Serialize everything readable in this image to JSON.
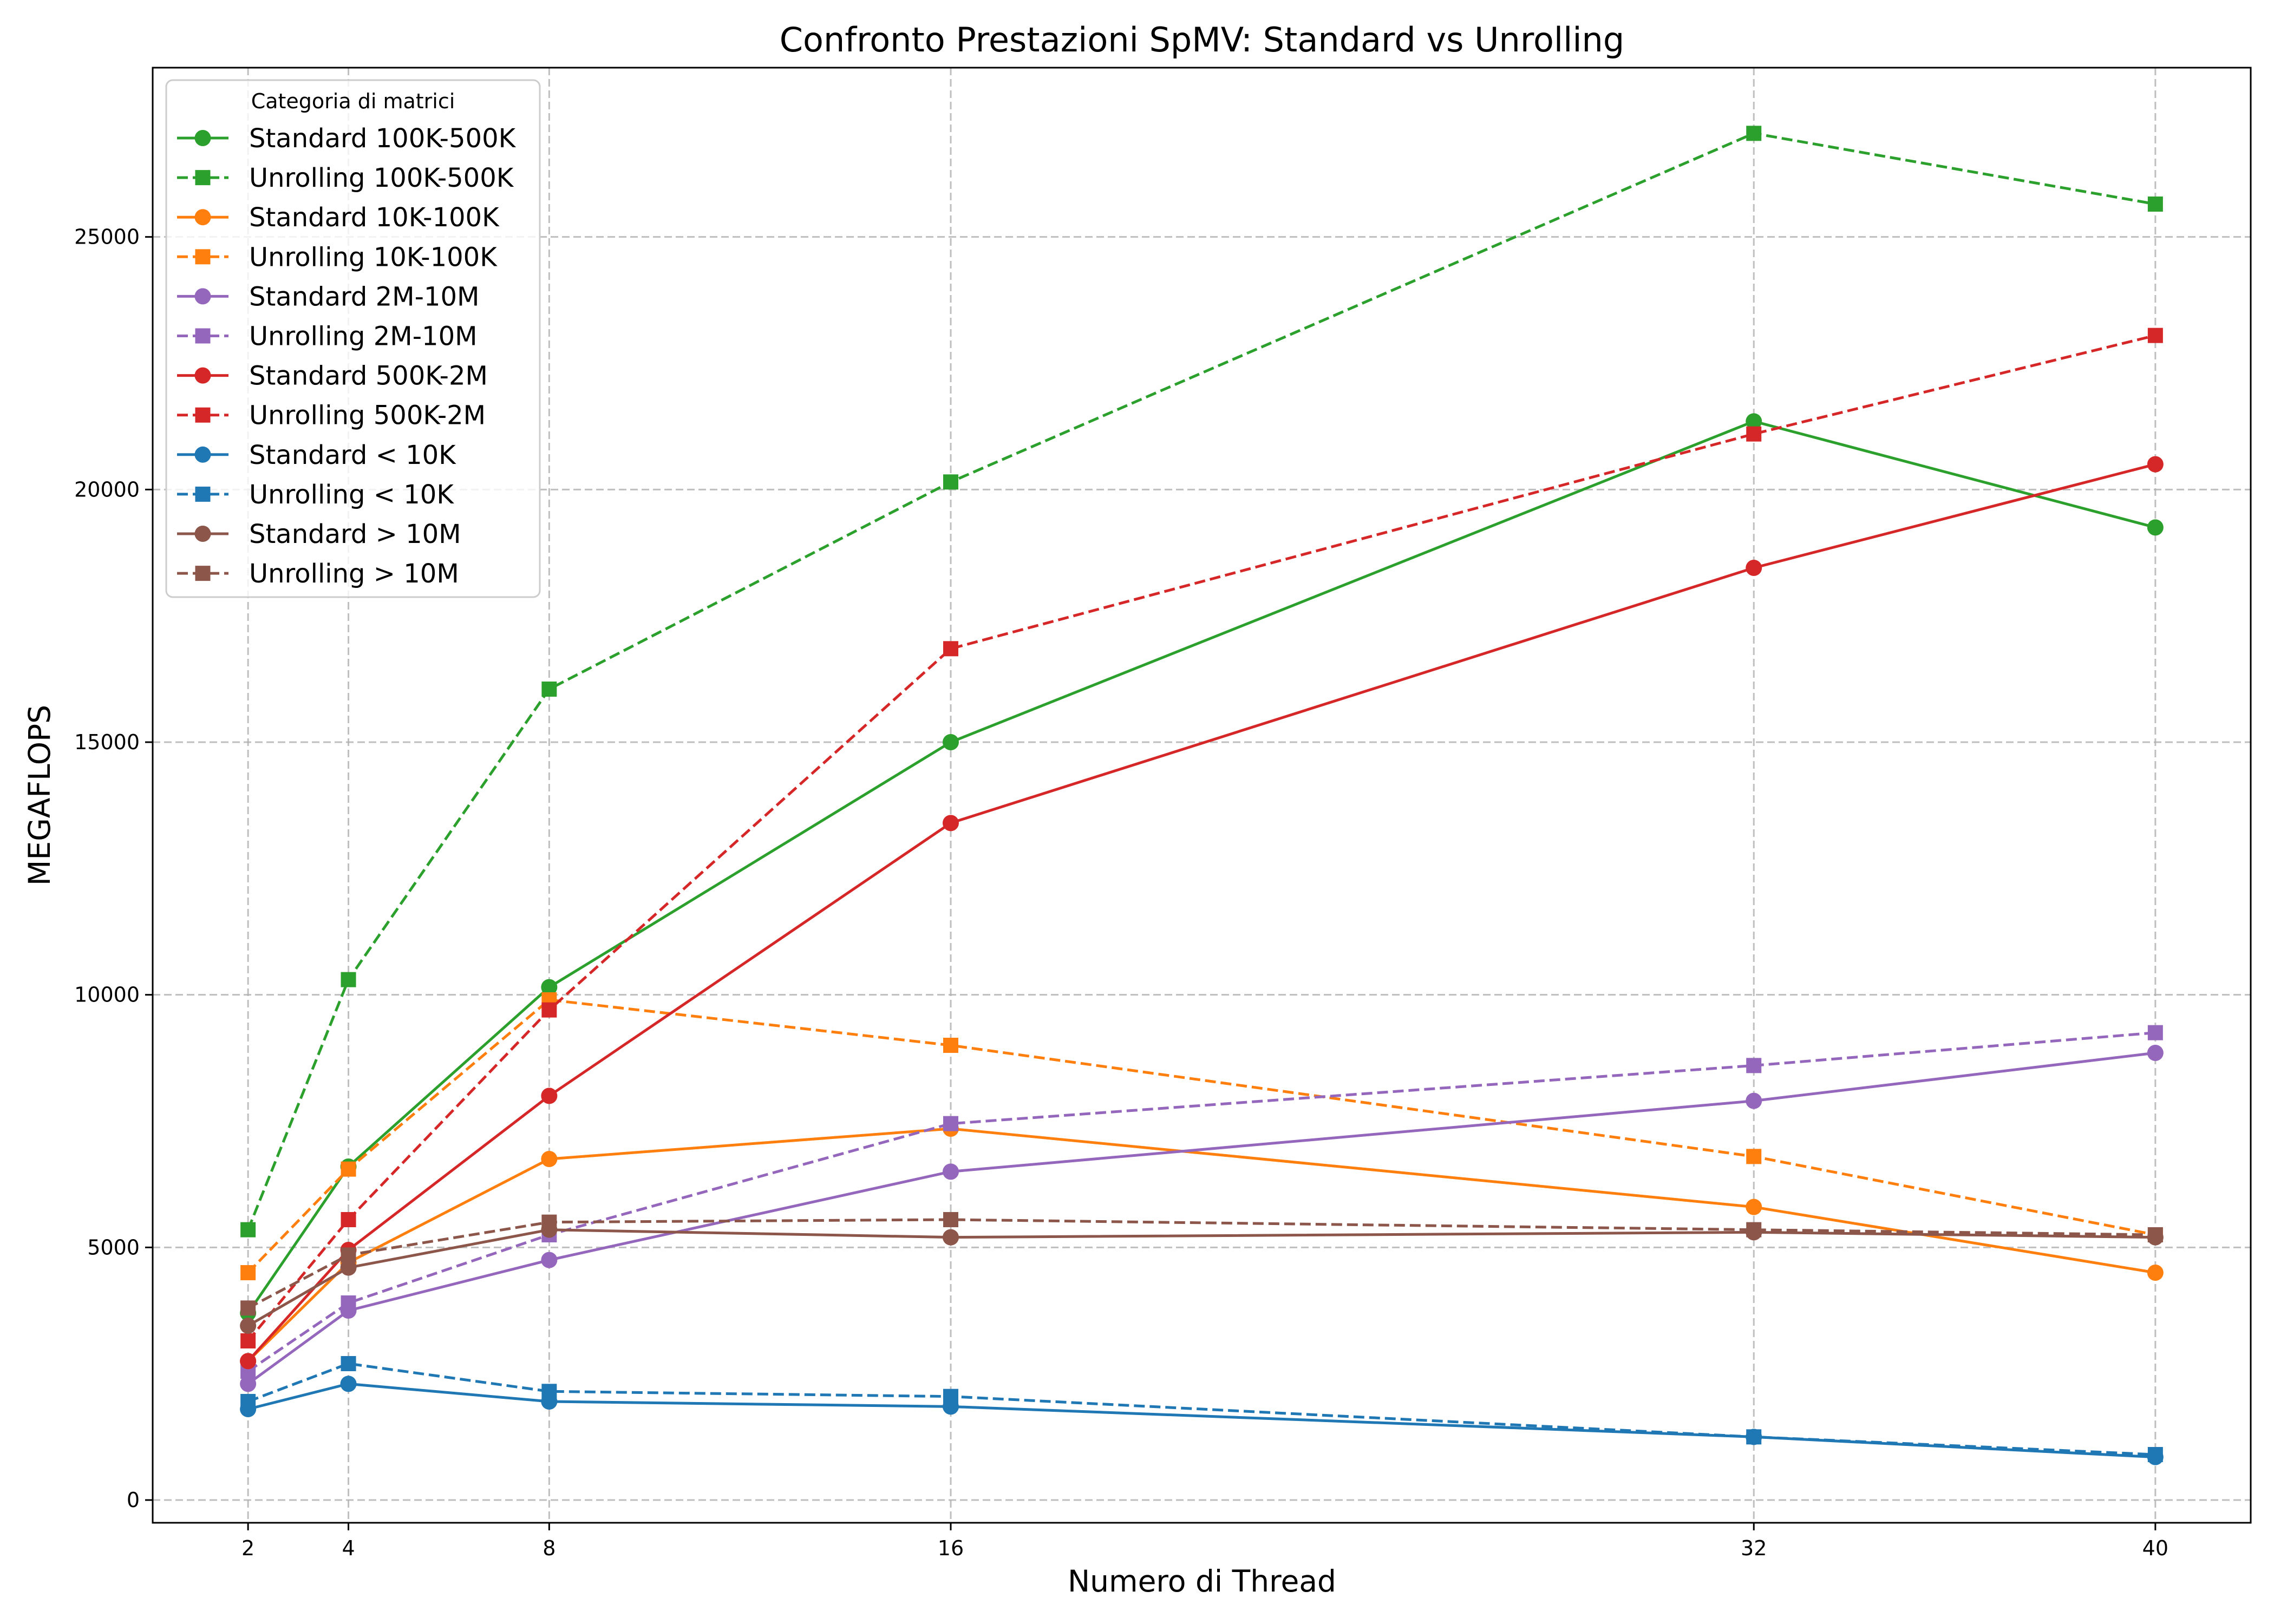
{
  "chart_data": {
    "type": "line",
    "title": "Confronto Prestazioni SpMV: Standard vs Unrolling",
    "xlabel": "Numero di Thread",
    "ylabel": "MEGAFLOPS",
    "x": [
      2,
      4,
      8,
      16,
      32,
      40
    ],
    "x_ticks": [
      "2",
      "4",
      "8",
      "16",
      "32",
      "40"
    ],
    "y_ticks": [
      "0",
      "5000",
      "10000",
      "15000",
      "20000",
      "25000"
    ],
    "xlim": [
      0.1,
      41.9
    ],
    "ylim": [
      -450,
      28350
    ],
    "grid": true,
    "legend": {
      "title": "Categoria di matrici",
      "placement": "top-left"
    },
    "series": [
      {
        "name": "Standard 100K-500K",
        "color": "#2ca02c",
        "style": "solid",
        "marker": "circle",
        "values": [
          3700,
          6600,
          10150,
          15000,
          21350,
          19250
        ]
      },
      {
        "name": "Unrolling 100K-500K",
        "color": "#2ca02c",
        "style": "dashed",
        "marker": "square",
        "values": [
          5350,
          10300,
          16050,
          20150,
          27050,
          25650
        ]
      },
      {
        "name": "Standard 10K-100K",
        "color": "#ff7f0e",
        "style": "solid",
        "marker": "circle",
        "values": [
          2750,
          4700,
          6750,
          7350,
          5800,
          4500
        ]
      },
      {
        "name": "Unrolling 10K-100K",
        "color": "#ff7f0e",
        "style": "dashed",
        "marker": "square",
        "values": [
          4500,
          6550,
          9900,
          9000,
          6800,
          5250
        ]
      },
      {
        "name": "Standard 2M-10M",
        "color": "#9467bd",
        "style": "solid",
        "marker": "circle",
        "values": [
          2300,
          3750,
          4750,
          6500,
          7900,
          8850
        ]
      },
      {
        "name": "Unrolling 2M-10M",
        "color": "#9467bd",
        "style": "dashed",
        "marker": "square",
        "values": [
          2550,
          3900,
          5250,
          7450,
          8600,
          9250
        ]
      },
      {
        "name": "Standard 500K-2M",
        "color": "#d62728",
        "style": "solid",
        "marker": "circle",
        "values": [
          2750,
          4950,
          8000,
          13400,
          18450,
          20500
        ]
      },
      {
        "name": "Unrolling 500K-2M",
        "color": "#d62728",
        "style": "dashed",
        "marker": "square",
        "values": [
          3150,
          5550,
          9700,
          16850,
          21100,
          23050
        ]
      },
      {
        "name": "Standard < 10K",
        "color": "#1f77b4",
        "style": "solid",
        "marker": "circle",
        "values": [
          1800,
          2300,
          1950,
          1850,
          1250,
          850
        ]
      },
      {
        "name": "Unrolling < 10K",
        "color": "#1f77b4",
        "style": "dashed",
        "marker": "square",
        "values": [
          1950,
          2700,
          2150,
          2050,
          1250,
          900
        ]
      },
      {
        "name": "Standard > 10M",
        "color": "#8c564b",
        "style": "solid",
        "marker": "circle",
        "values": [
          3450,
          4600,
          5350,
          5200,
          5300,
          5200
        ]
      },
      {
        "name": "Unrolling > 10M",
        "color": "#8c564b",
        "style": "dashed",
        "marker": "square",
        "values": [
          3800,
          4850,
          5500,
          5550,
          5350,
          5250
        ]
      }
    ]
  }
}
